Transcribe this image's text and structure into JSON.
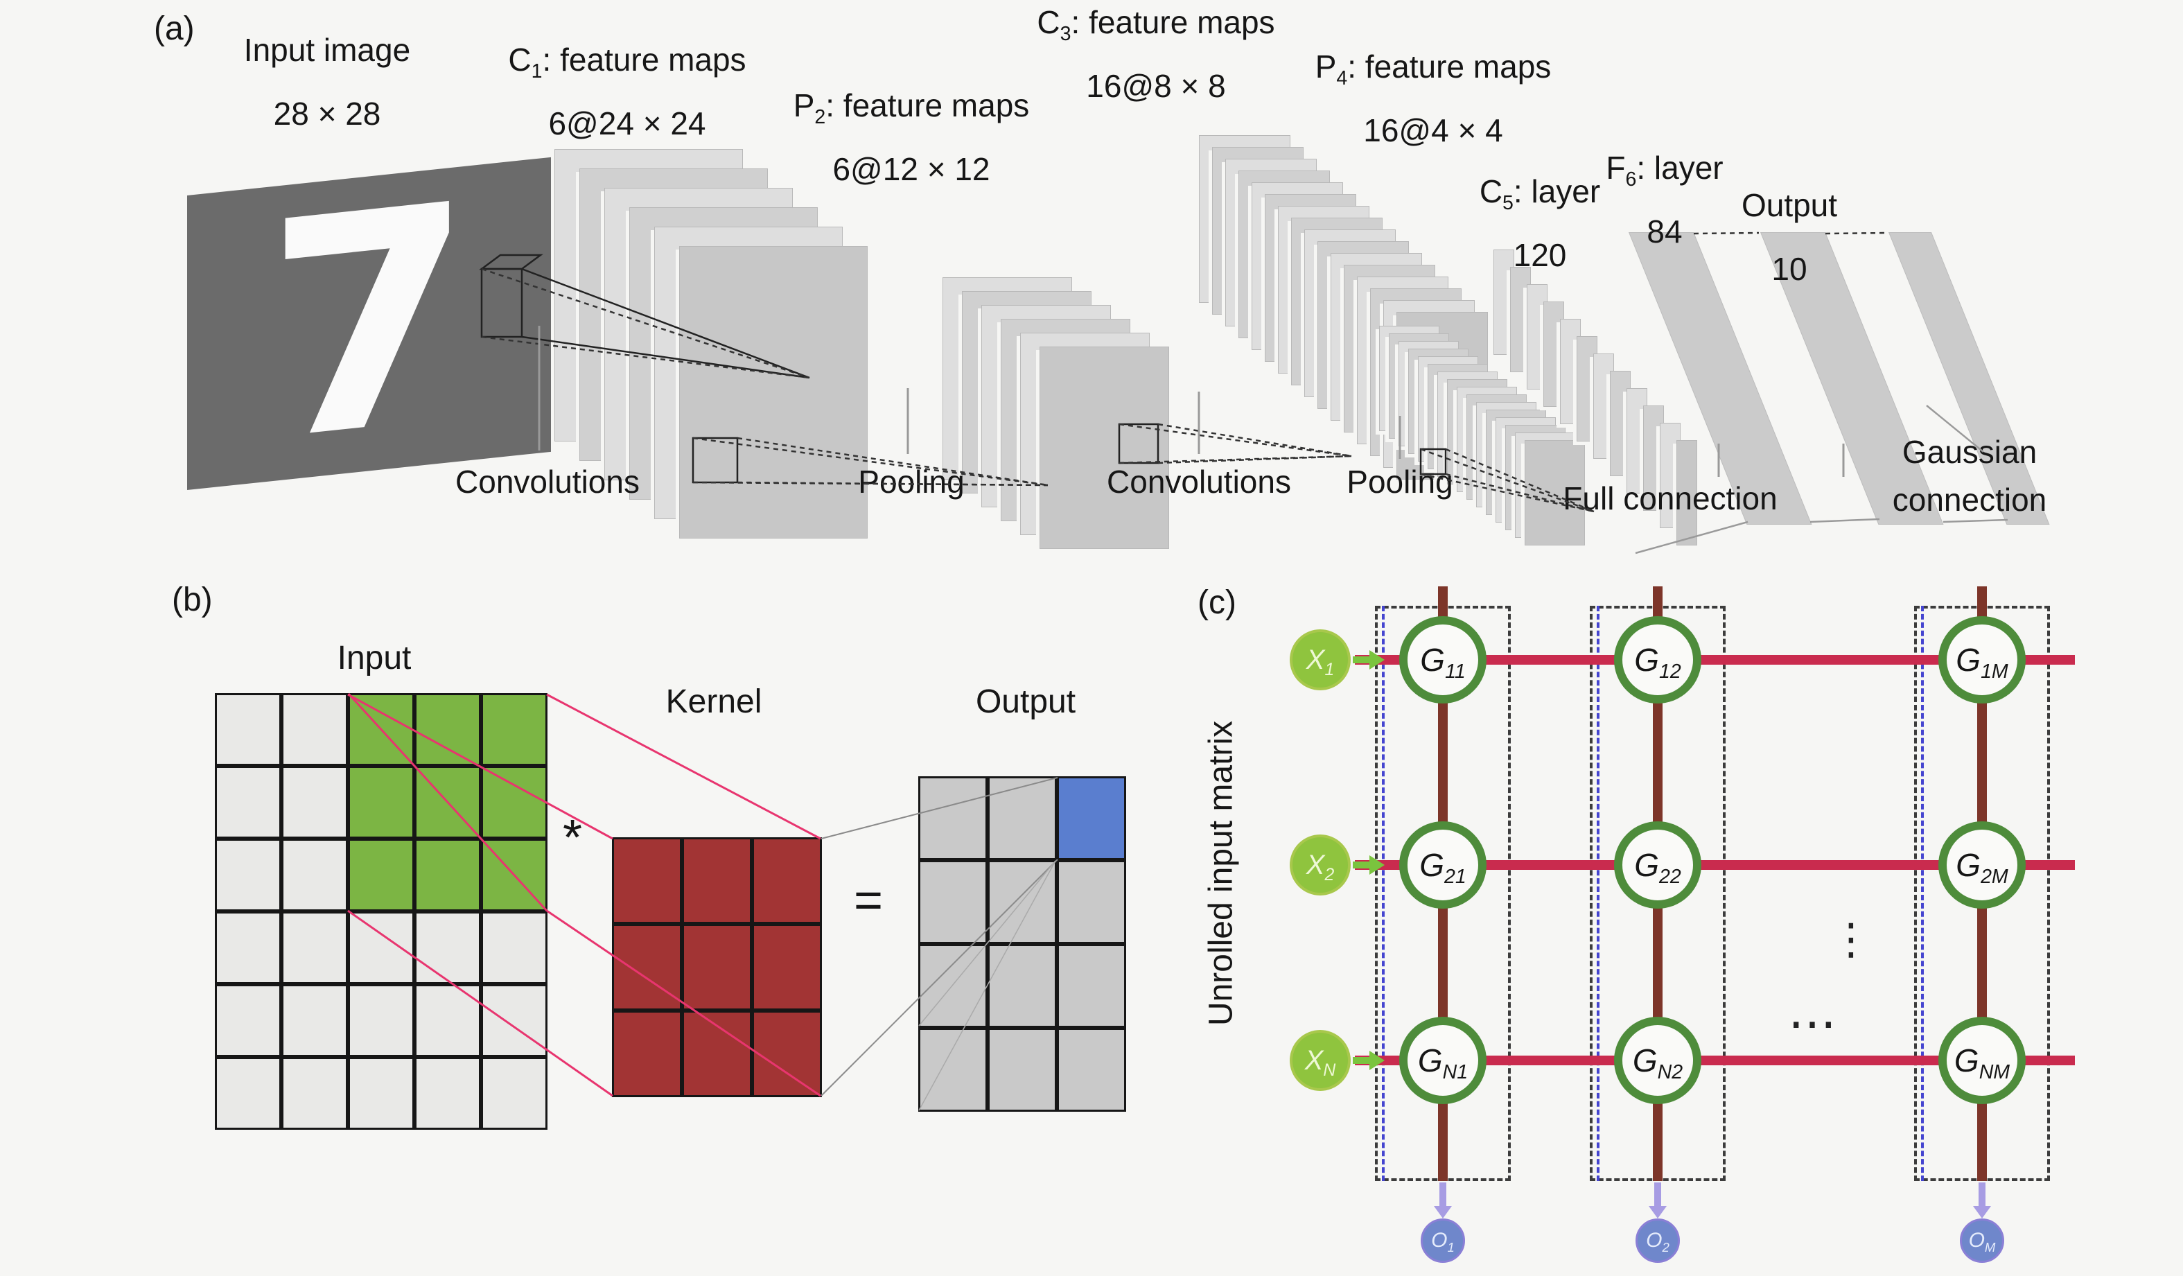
{
  "panel_a": {
    "tag": "(a)",
    "captions": [
      {
        "pre": "Input image",
        "sub": "",
        "post": "",
        "line2": "28 × 28"
      },
      {
        "pre": "C",
        "sub": "1",
        "post": ":  feature maps",
        "line2": "6@24 × 24"
      },
      {
        "pre": "P",
        "sub": "2",
        "post": ":  feature maps",
        "line2": "6@12 × 12"
      },
      {
        "pre": "C",
        "sub": "3",
        "post": ":  feature maps",
        "line2": "16@8 × 8"
      },
      {
        "pre": "P",
        "sub": "4",
        "post": ":  feature maps",
        "line2": "16@4 × 4"
      },
      {
        "pre": "C",
        "sub": "5",
        "post": ":  layer",
        "line2": "120"
      },
      {
        "pre": "F",
        "sub": "6",
        "post": ":  layer",
        "line2": "84"
      },
      {
        "pre": "Output",
        "sub": "",
        "post": "",
        "line2": "10"
      }
    ],
    "operation_labels": [
      "Convolutions",
      "Pooling",
      "Convolutions",
      "Pooling",
      "Full connection"
    ],
    "gaussian_label_line1": "Gaussian",
    "gaussian_label_line2": "connection",
    "digit": "7"
  },
  "panel_b": {
    "tag": "(b)",
    "input_label": "Input",
    "kernel_label": "Kernel",
    "output_label": "Output",
    "convolve_operator": "*",
    "equals_operator": "=",
    "colors": {
      "input_cell": "#e9e9e7",
      "receptive_field": "#7cb544",
      "kernel": "#a23434",
      "output_cell": "#c9c9c9",
      "result_cell": "#5a7ecf"
    },
    "grids": {
      "input": {
        "rows": 6,
        "cols": 5,
        "highlight_cells": [
          [
            0,
            2
          ],
          [
            0,
            3
          ],
          [
            0,
            4
          ],
          [
            1,
            2
          ],
          [
            1,
            3
          ],
          [
            1,
            4
          ],
          [
            2,
            2
          ],
          [
            2,
            3
          ],
          [
            2,
            4
          ]
        ]
      },
      "kernel": {
        "rows": 3,
        "cols": 3,
        "highlight_cells": []
      },
      "output": {
        "rows": 4,
        "cols": 3,
        "highlight_cells": [
          [
            0,
            2
          ]
        ]
      }
    }
  },
  "panel_c": {
    "tag": "(c)",
    "side_label": "Unrolled input matrix",
    "inputs": [
      {
        "base": "X",
        "sub": "1"
      },
      {
        "base": "X",
        "sub": "2"
      },
      {
        "base": "X",
        "sub": "N"
      }
    ],
    "outputs": [
      {
        "base": "O",
        "sub": "1"
      },
      {
        "base": "O",
        "sub": "2"
      },
      {
        "base": "O",
        "sub": "M"
      }
    ],
    "conductances": [
      {
        "base": "G",
        "sub": "11"
      },
      {
        "base": "G",
        "sub": "12"
      },
      {
        "base": "G",
        "sub": "1M"
      },
      {
        "base": "G",
        "sub": "21"
      },
      {
        "base": "G",
        "sub": "22"
      },
      {
        "base": "G",
        "sub": "2M"
      },
      {
        "base": "G",
        "sub": "N1"
      },
      {
        "base": "G",
        "sub": "N2"
      },
      {
        "base": "G",
        "sub": "NM"
      }
    ],
    "ellipsis_vertical": "⋮",
    "ellipsis_horizontal": "…",
    "colors": {
      "input_node": "#8fc43e",
      "output_node": "#6f87cb",
      "row_line": "#c92b4e",
      "column_line": "#7d3529",
      "cell_ring": "#4e8c3b",
      "output_arrow": "#a79ce3"
    }
  }
}
